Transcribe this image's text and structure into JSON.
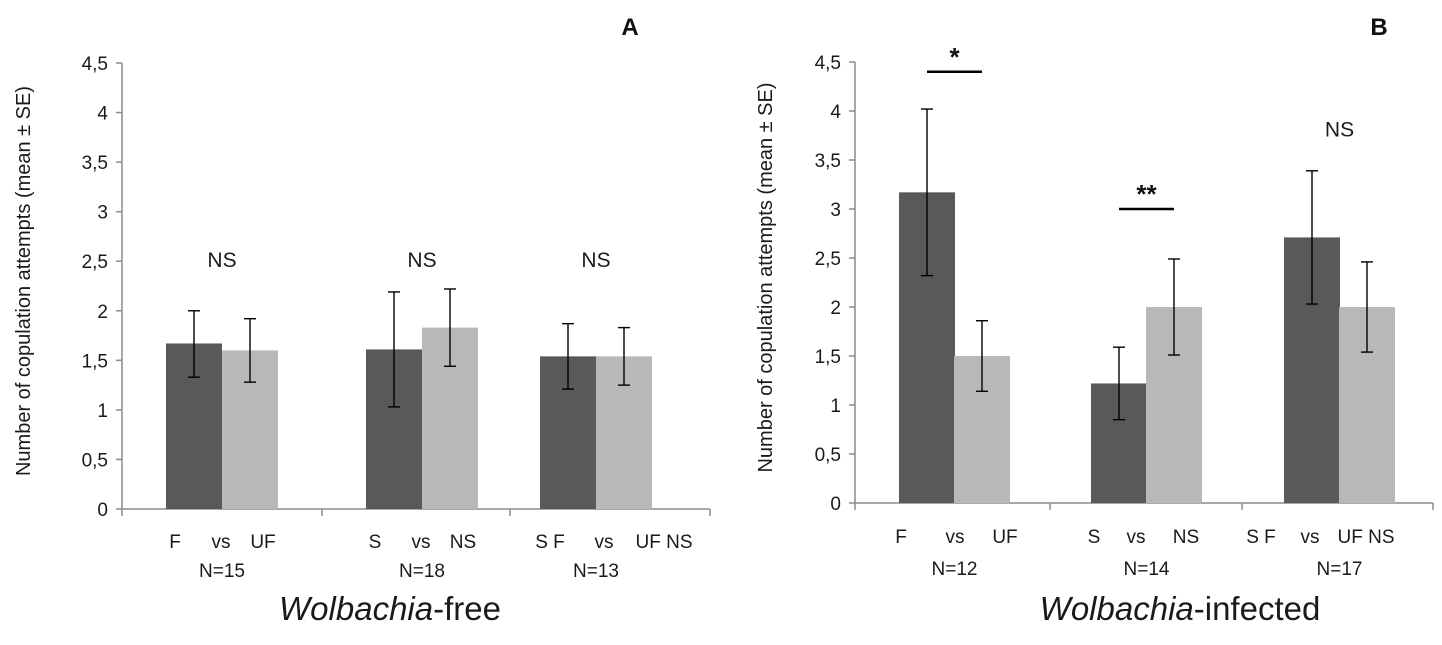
{
  "colors": {
    "dark_bar": "#595959",
    "light_bar": "#b8b8b8",
    "axis": "#8c8c8c",
    "error_bar": "#000000"
  },
  "chart_data": [
    {
      "type": "bar",
      "panel_letter": "A",
      "ylabel": "Number of copulation attempts (mean ± SE)",
      "ylim": [
        0,
        4.5
      ],
      "yticks": [
        "0",
        "0,5",
        "1",
        "1,5",
        "2",
        "2,5",
        "3",
        "3,5",
        "4",
        "4,5"
      ],
      "ytick_values": [
        0,
        0.5,
        1,
        1.5,
        2,
        2.5,
        3,
        3.5,
        4,
        4.5
      ],
      "group_title_italic": "Wolbachia",
      "group_title_rest": "-free",
      "groups": [
        {
          "label_left": "F",
          "label_mid": "vs",
          "label_right": "UF",
          "n_label": "N=15",
          "dark": {
            "value": 1.67,
            "err_low": 1.33,
            "err_high": 2.0
          },
          "light": {
            "value": 1.6,
            "err_low": 1.28,
            "err_high": 1.92
          },
          "sig_text": "NS",
          "sig_style": "normal",
          "sig_line": false,
          "sig_y": 2.5
        },
        {
          "label_left": "S",
          "label_mid": "vs",
          "label_right": "NS",
          "n_label": "N=18",
          "dark": {
            "value": 1.61,
            "err_low": 1.03,
            "err_high": 2.19
          },
          "light": {
            "value": 1.83,
            "err_low": 1.44,
            "err_high": 2.22
          },
          "sig_text": "NS",
          "sig_style": "normal",
          "sig_line": false,
          "sig_y": 2.5
        },
        {
          "label_left": "S F",
          "label_mid": "vs",
          "label_right": "UF NS",
          "n_label": "N=13",
          "dark": {
            "value": 1.54,
            "err_low": 1.21,
            "err_high": 1.87
          },
          "light": {
            "value": 1.54,
            "err_low": 1.25,
            "err_high": 1.83
          },
          "sig_text": "NS",
          "sig_style": "normal",
          "sig_line": false,
          "sig_y": 2.5
        }
      ]
    },
    {
      "type": "bar",
      "panel_letter": "B",
      "ylabel": "Number of copulation attempts (mean ± SE)",
      "ylim": [
        0,
        4.5
      ],
      "yticks": [
        "0",
        "0,5",
        "1",
        "1,5",
        "2",
        "2,5",
        "3",
        "3,5",
        "4",
        "4,5"
      ],
      "ytick_values": [
        0,
        0.5,
        1,
        1.5,
        2,
        2.5,
        3,
        3.5,
        4,
        4.5
      ],
      "group_title_italic": "Wolbachia",
      "group_title_rest": "-infected",
      "groups": [
        {
          "label_left": "F",
          "label_mid": "vs",
          "label_right": "UF",
          "n_label": "N=12",
          "dark": {
            "value": 3.17,
            "err_low": 2.32,
            "err_high": 4.02
          },
          "light": {
            "value": 1.5,
            "err_low": 1.14,
            "err_high": 1.86
          },
          "sig_text": "*",
          "sig_style": "bold",
          "sig_line": true,
          "sig_y": 4.4
        },
        {
          "label_left": "S",
          "label_mid": "vs",
          "label_right": "NS",
          "n_label": "N=14",
          "dark": {
            "value": 1.22,
            "err_low": 0.85,
            "err_high": 1.59
          },
          "light": {
            "value": 2.0,
            "err_low": 1.51,
            "err_high": 2.49
          },
          "sig_text": "**",
          "sig_style": "bold",
          "sig_line": true,
          "sig_y": 3.0
        },
        {
          "label_left": "S F",
          "label_mid": "vs",
          "label_right": "UF NS",
          "n_label": "N=17",
          "dark": {
            "value": 2.71,
            "err_low": 2.03,
            "err_high": 3.39
          },
          "light": {
            "value": 2.0,
            "err_low": 1.54,
            "err_high": 2.46
          },
          "sig_text": "NS",
          "sig_style": "normal",
          "sig_line": false,
          "sig_y": 3.8
        }
      ]
    }
  ]
}
